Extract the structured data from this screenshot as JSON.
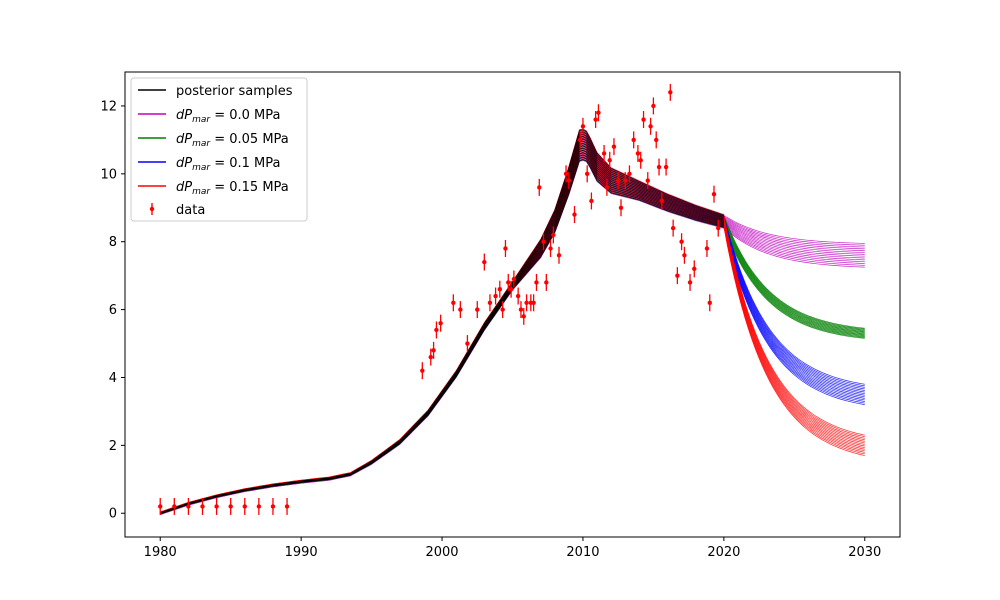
{
  "chart_data": {
    "type": "line",
    "title": "",
    "xlabel": "",
    "ylabel": "",
    "xlim": [
      1977.5,
      2032.5
    ],
    "ylim": [
      -0.7,
      13.0
    ],
    "x_ticks": [
      1980,
      1990,
      2000,
      2010,
      2020,
      2030
    ],
    "x_tick_labels": [
      "1980",
      "1990",
      "2000",
      "2010",
      "2020",
      "2030"
    ],
    "y_ticks": [
      0,
      2,
      4,
      6,
      8,
      10,
      12
    ],
    "y_tick_labels": [
      "0",
      "2",
      "4",
      "6",
      "8",
      "10",
      "12"
    ],
    "grid": false,
    "legend_placement": "top-left",
    "legend": [
      {
        "key": "posterior",
        "label": "posterior samples",
        "color": "#000000",
        "marker": "line"
      },
      {
        "key": "dp0",
        "label_prefix": "dP",
        "label_sub": "mar",
        "label_suffix": " = 0.0 MPa",
        "color": "#bf00bf",
        "marker": "line"
      },
      {
        "key": "dp05",
        "label_prefix": "dP",
        "label_sub": "mar",
        "label_suffix": " = 0.05 MPa",
        "color": "#008000",
        "marker": "line"
      },
      {
        "key": "dp1",
        "label_prefix": "dP",
        "label_sub": "mar",
        "label_suffix": " = 0.1 MPa",
        "color": "#0000ff",
        "marker": "line"
      },
      {
        "key": "dp15",
        "label_prefix": "dP",
        "label_sub": "mar",
        "label_suffix": " = 0.15 MPa",
        "color": "#ff0000",
        "marker": "line"
      },
      {
        "key": "data",
        "label": "data",
        "color": "#ff0000",
        "marker": "errorbar"
      }
    ],
    "posterior_mean": {
      "x": [
        1980,
        1982,
        1984,
        1986,
        1988,
        1990,
        1992,
        1993.5,
        1995,
        1997,
        1999,
        2001,
        2003,
        2005,
        2007,
        2008,
        2009,
        2009.8,
        2010.3,
        2011,
        2012,
        2014,
        2016,
        2018,
        2020
      ],
      "y": [
        0.0,
        0.28,
        0.5,
        0.68,
        0.82,
        0.93,
        1.02,
        1.15,
        1.5,
        2.1,
        2.95,
        4.1,
        5.5,
        6.7,
        7.8,
        8.6,
        9.8,
        10.9,
        10.8,
        10.2,
        9.8,
        9.5,
        9.15,
        8.85,
        8.6
      ]
    },
    "posterior_spread": {
      "x": [
        1980,
        1993.5,
        2000,
        2005,
        2009.8,
        2011,
        2014,
        2017,
        2020
      ],
      "y": [
        0.02,
        0.03,
        0.08,
        0.12,
        0.5,
        0.45,
        0.3,
        0.25,
        0.2
      ]
    },
    "forecasts": [
      {
        "key": "dp0",
        "color": "#bf00bf",
        "end_value": 7.6,
        "end_spread": 0.35
      },
      {
        "key": "dp05",
        "color": "#008000",
        "end_value": 5.3,
        "end_spread": 0.15
      },
      {
        "key": "dp1",
        "color": "#0000ff",
        "end_value": 3.5,
        "end_spread": 0.3
      },
      {
        "key": "dp15",
        "color": "#ff0000",
        "end_value": 2.0,
        "end_spread": 0.3
      }
    ],
    "forecast_x": [
      2020,
      2030
    ],
    "samples_per_group": 14,
    "data": {
      "error": 0.25,
      "points": [
        [
          1980,
          0.2
        ],
        [
          1981,
          0.2
        ],
        [
          1982,
          0.2
        ],
        [
          1983,
          0.2
        ],
        [
          1984,
          0.2
        ],
        [
          1985,
          0.2
        ],
        [
          1986,
          0.2
        ],
        [
          1987,
          0.2
        ],
        [
          1988,
          0.2
        ],
        [
          1989,
          0.2
        ],
        [
          1998.6,
          4.2
        ],
        [
          1999.2,
          4.6
        ],
        [
          1999.4,
          4.8
        ],
        [
          1999.6,
          5.4
        ],
        [
          1999.9,
          5.6
        ],
        [
          2000.8,
          6.2
        ],
        [
          2001.3,
          6.0
        ],
        [
          2001.8,
          5.0
        ],
        [
          2002.5,
          6.0
        ],
        [
          2003.0,
          7.4
        ],
        [
          2003.4,
          6.2
        ],
        [
          2003.8,
          6.4
        ],
        [
          2004.1,
          6.6
        ],
        [
          2004.3,
          6.0
        ],
        [
          2004.5,
          7.8
        ],
        [
          2004.7,
          6.8
        ],
        [
          2004.9,
          6.6
        ],
        [
          2005.1,
          6.9
        ],
        [
          2005.4,
          6.4
        ],
        [
          2005.6,
          6.0
        ],
        [
          2005.8,
          5.8
        ],
        [
          2006.0,
          6.2
        ],
        [
          2006.3,
          6.2
        ],
        [
          2006.5,
          6.2
        ],
        [
          2006.7,
          6.8
        ],
        [
          2006.9,
          9.6
        ],
        [
          2007.2,
          8.0
        ],
        [
          2007.4,
          6.8
        ],
        [
          2007.7,
          7.8
        ],
        [
          2007.9,
          8.2
        ],
        [
          2008.3,
          7.6
        ],
        [
          2008.8,
          10.0
        ],
        [
          2009.0,
          9.8
        ],
        [
          2009.4,
          8.8
        ],
        [
          2009.8,
          11.0
        ],
        [
          2010.0,
          11.4
        ],
        [
          2010.3,
          10.0
        ],
        [
          2010.6,
          9.2
        ],
        [
          2010.9,
          11.6
        ],
        [
          2011.1,
          11.8
        ],
        [
          2011.5,
          10.6
        ],
        [
          2011.7,
          9.6
        ],
        [
          2011.9,
          10.4
        ],
        [
          2012.2,
          10.8
        ],
        [
          2012.5,
          9.8
        ],
        [
          2012.7,
          9.0
        ],
        [
          2013.0,
          9.8
        ],
        [
          2013.3,
          10.0
        ],
        [
          2013.6,
          11.0
        ],
        [
          2013.9,
          10.6
        ],
        [
          2014.1,
          10.4
        ],
        [
          2014.3,
          11.6
        ],
        [
          2014.6,
          9.8
        ],
        [
          2014.8,
          11.4
        ],
        [
          2015.0,
          12.0
        ],
        [
          2015.2,
          11.0
        ],
        [
          2015.4,
          10.2
        ],
        [
          2015.6,
          9.2
        ],
        [
          2015.9,
          10.2
        ],
        [
          2016.2,
          12.4
        ],
        [
          2016.4,
          8.4
        ],
        [
          2016.7,
          7.0
        ],
        [
          2017.0,
          8.0
        ],
        [
          2017.2,
          7.6
        ],
        [
          2017.6,
          6.8
        ],
        [
          2017.9,
          7.2
        ],
        [
          2018.8,
          7.8
        ],
        [
          2019.0,
          6.2
        ],
        [
          2019.3,
          9.4
        ],
        [
          2019.6,
          8.4
        ]
      ]
    }
  },
  "icons": {
    "legend_line": "line-swatch-icon",
    "legend_errorbar": "errorbar-swatch-icon"
  }
}
